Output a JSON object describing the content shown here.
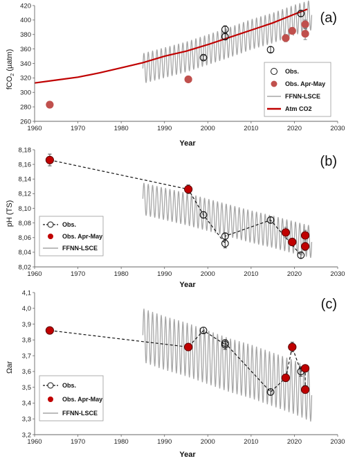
{
  "chart_data": [
    {
      "type": "scatter",
      "panel_label": "(a)",
      "xlabel": "Year",
      "ylabel": "fCO2 (µatm)",
      "ylabel_main": "fCO",
      "ylabel_sub": "2",
      "ylabel_unit": " (µatm)",
      "xlim": [
        1960,
        2030
      ],
      "ylim": [
        260,
        420
      ],
      "xticks": [
        1960,
        1970,
        1980,
        1990,
        2000,
        2010,
        2020,
        2030
      ],
      "yticks": [
        260,
        280,
        300,
        320,
        340,
        360,
        380,
        400,
        420
      ],
      "grid": false,
      "legend_position": "right",
      "colors": {
        "obs": "#111111",
        "obs_aprmay": "#c0504d",
        "ffnn": "#a6a6a6",
        "atm": "#c00000"
      },
      "series": [
        {
          "name": "Obs.",
          "kind": "open-circle",
          "points": [
            [
              1999,
              348
            ],
            [
              2004,
              377
            ],
            [
              2004,
              387
            ],
            [
              2014.5,
              359
            ],
            [
              2021.5,
              409
            ]
          ],
          "errors": [
            3,
            4,
            5,
            4,
            4
          ]
        },
        {
          "name": "Obs. Apr-May",
          "kind": "filled-circle",
          "points": [
            [
              1963.5,
              283
            ],
            [
              1995.5,
              318
            ],
            [
              2018,
              375
            ],
            [
              2019.5,
              385
            ],
            [
              2022.5,
              394
            ],
            [
              2022.5,
              381
            ]
          ],
          "errors": [
            0,
            2,
            5,
            4,
            6,
            8
          ]
        },
        {
          "name": "FFNN-LSCE",
          "kind": "oscillating-line",
          "x_start": 1985,
          "x_end": 2024,
          "period": 1,
          "trend": [
            [
              1985,
              333
            ],
            [
              1990,
              341
            ],
            [
              1995,
              349
            ],
            [
              2000,
              359
            ],
            [
              2005,
              369
            ],
            [
              2010,
              380
            ],
            [
              2015,
              389
            ],
            [
              2020,
              400
            ],
            [
              2024,
              407
            ]
          ],
          "amplitude": 21
        },
        {
          "name": "Atm CO2",
          "kind": "line",
          "points": [
            [
              1960,
              313
            ],
            [
              1965,
              317
            ],
            [
              1970,
              321
            ],
            [
              1975,
              327
            ],
            [
              1980,
              334
            ],
            [
              1985,
              341
            ],
            [
              1990,
              350
            ],
            [
              1995,
              357
            ],
            [
              2000,
              366
            ],
            [
              2005,
              376
            ],
            [
              2010,
              386
            ],
            [
              2015,
              396
            ],
            [
              2020,
              408
            ],
            [
              2023,
              415
            ]
          ]
        }
      ]
    },
    {
      "type": "scatter",
      "panel_label": "(b)",
      "xlabel": "Year",
      "ylabel": "pH (TS)",
      "xlim": [
        1960,
        2030
      ],
      "ylim": [
        8.02,
        8.18
      ],
      "xticks": [
        1960,
        1970,
        1980,
        1990,
        2000,
        2010,
        2020,
        2030
      ],
      "yticks": [
        8.02,
        8.04,
        8.06,
        8.08,
        8.1,
        8.12,
        8.14,
        8.16,
        8.18
      ],
      "ytick_labels": [
        "8,02",
        "8,04",
        "8,06",
        "8,08",
        "8,10",
        "8,12",
        "8,14",
        "8,16",
        "8,18"
      ],
      "grid": false,
      "legend_position": "bottom-left",
      "colors": {
        "obs": "#111111",
        "obs_aprmay": "#c00000",
        "ffnn": "#a6a6a6"
      },
      "series": [
        {
          "name": "Obs.",
          "kind": "dashed-open-circle",
          "points": [
            [
              1963.5,
              8.166
            ],
            [
              1995.5,
              8.126
            ],
            [
              1999,
              8.091
            ],
            [
              2004,
              8.052
            ],
            [
              2004,
              8.062
            ],
            [
              2014.5,
              8.084
            ],
            [
              2021.5,
              8.036
            ]
          ],
          "errors": [
            0.008,
            0.006,
            0.004,
            0.006,
            0.004,
            0.004,
            0.004
          ]
        },
        {
          "name": "Obs. Apr-May",
          "kind": "filled-circle",
          "points": [
            [
              1963.5,
              8.166
            ],
            [
              1995.5,
              8.126
            ],
            [
              2018,
              8.067
            ],
            [
              2019.5,
              8.054
            ],
            [
              2022.5,
              8.063
            ],
            [
              2022.5,
              8.048
            ]
          ],
          "errors": [
            0.008,
            0.006,
            0.007,
            0.005,
            0.007,
            0.006
          ]
        },
        {
          "name": "FFNN-LSCE",
          "kind": "oscillating-line",
          "x_start": 1985,
          "x_end": 2024,
          "period": 1,
          "trend": [
            [
              1985,
              8.113
            ],
            [
              1990,
              8.106
            ],
            [
              1995,
              8.099
            ],
            [
              2000,
              8.091
            ],
            [
              2005,
              8.083
            ],
            [
              2010,
              8.075
            ],
            [
              2015,
              8.068
            ],
            [
              2020,
              8.06
            ],
            [
              2024,
              8.054
            ]
          ],
          "amplitude": 0.022
        }
      ]
    },
    {
      "type": "scatter",
      "panel_label": "(c)",
      "xlabel": "Year",
      "ylabel": "Ωar",
      "xlim": [
        1960,
        2030
      ],
      "ylim": [
        3.2,
        4.1
      ],
      "xticks": [
        1960,
        1970,
        1980,
        1990,
        2000,
        2010,
        2020,
        2030
      ],
      "yticks": [
        3.2,
        3.3,
        3.4,
        3.5,
        3.6,
        3.7,
        3.8,
        3.9,
        4.0,
        4.1
      ],
      "ytick_labels": [
        "3,2",
        "3,3",
        "3,4",
        "3,5",
        "3,6",
        "3,7",
        "3,8",
        "3,9",
        "4,0",
        "4,1"
      ],
      "grid": false,
      "legend_position": "bottom-left",
      "colors": {
        "obs": "#111111",
        "obs_aprmay": "#c00000",
        "ffnn": "#a6a6a6"
      },
      "series": [
        {
          "name": "Obs.",
          "kind": "dashed-open-circle",
          "points": [
            [
              1963.5,
              3.86
            ],
            [
              1995.5,
              3.755
            ],
            [
              1999,
              3.86
            ],
            [
              2004,
              3.77
            ],
            [
              2004,
              3.78
            ],
            [
              2014.5,
              3.47
            ],
            [
              2018,
              3.56
            ],
            [
              2019.5,
              3.755
            ],
            [
              2021.5,
              3.6
            ],
            [
              2022.5,
              3.62
            ],
            [
              2022.5,
              3.49
            ]
          ],
          "errors": [
            0,
            0,
            0.02,
            0.03,
            0.02,
            0.02,
            0.02,
            0.03,
            0.03,
            0.02,
            0.02
          ]
        },
        {
          "name": "Obs. Apr-May",
          "kind": "filled-circle",
          "points": [
            [
              1963.5,
              3.86
            ],
            [
              1995.5,
              3.755
            ],
            [
              2018,
              3.56
            ],
            [
              2019.5,
              3.755
            ],
            [
              2022.5,
              3.62
            ],
            [
              2022.5,
              3.485
            ]
          ],
          "errors": [
            0,
            0,
            0,
            0,
            0,
            0
          ]
        },
        {
          "name": "FFNN-LSCE",
          "kind": "oscillating-line",
          "x_start": 1985,
          "x_end": 2024,
          "period": 1,
          "trend": [
            [
              1985,
              3.83
            ],
            [
              1990,
              3.78
            ],
            [
              1995,
              3.74
            ],
            [
              2000,
              3.69
            ],
            [
              2005,
              3.64
            ],
            [
              2010,
              3.6
            ],
            [
              2015,
              3.55
            ],
            [
              2020,
              3.5
            ],
            [
              2024,
              3.45
            ]
          ],
          "amplitude": 0.17
        }
      ]
    }
  ]
}
